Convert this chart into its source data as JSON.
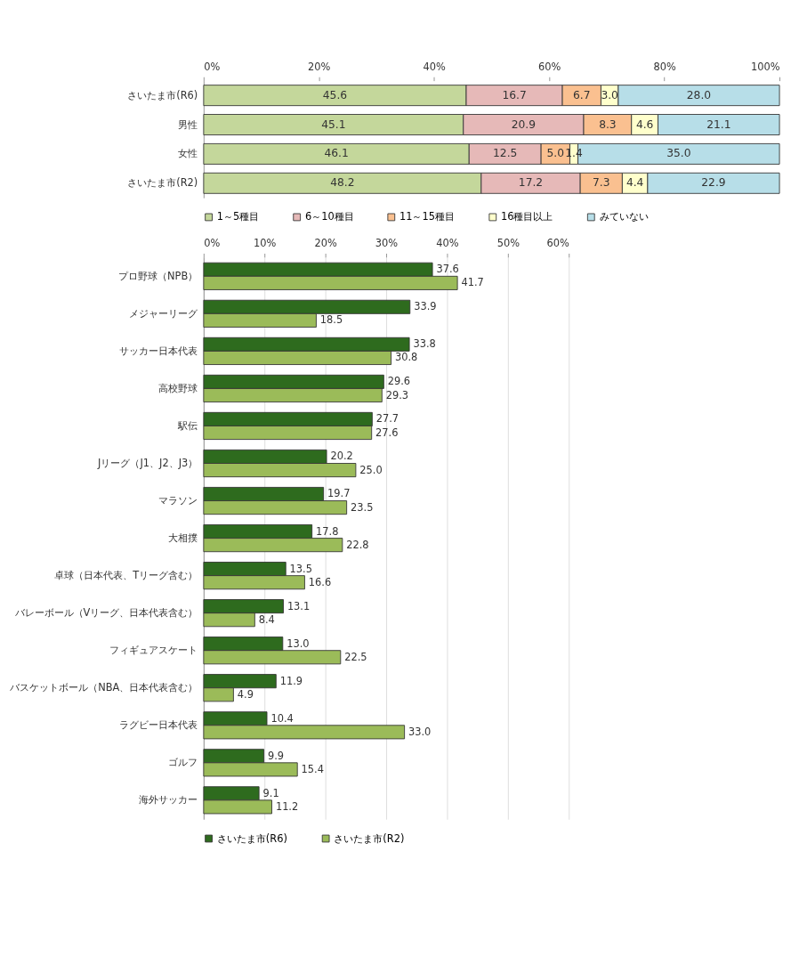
{
  "chart_data": [
    {
      "type": "bar",
      "orientation": "horizontal",
      "stacked": true,
      "grid": false,
      "legend": "bottom",
      "categories": [
        "さいたま市(R6)",
        "男性",
        "女性",
        "さいたま市(R2)"
      ],
      "xlim": [
        0,
        100
      ],
      "xticks": [
        {
          "value": 0,
          "label": "0%"
        },
        {
          "value": 20,
          "label": "20%"
        },
        {
          "value": 40,
          "label": "40%"
        },
        {
          "value": 60,
          "label": "60%"
        },
        {
          "value": 80,
          "label": "80%"
        },
        {
          "value": 100,
          "label": "100%"
        }
      ],
      "series": [
        {
          "name": "1～5種目",
          "color": "#c4d79b",
          "values": [
            45.6,
            45.1,
            46.1,
            48.2
          ],
          "value_labels": [
            "45.6",
            "45.1",
            "46.1",
            "48.2"
          ]
        },
        {
          "name": "6～10種目",
          "color": "#e6b9b8",
          "values": [
            16.7,
            20.9,
            12.5,
            17.2
          ],
          "value_labels": [
            "16.7",
            "20.9",
            "12.5",
            "17.2"
          ]
        },
        {
          "name": "11～15種目",
          "color": "#fac090",
          "values": [
            6.7,
            8.3,
            5.0,
            7.3
          ],
          "value_labels": [
            "6.7",
            "8.3",
            "5.0",
            "7.3"
          ]
        },
        {
          "name": "16種目以上",
          "color": "#ffffcc",
          "values": [
            3.0,
            4.6,
            1.4,
            4.4
          ],
          "value_labels": [
            "3.0",
            "4.6",
            "1.4",
            "4.4"
          ]
        },
        {
          "name": "みていない",
          "color": "#b7dee8",
          "values": [
            28.0,
            21.1,
            35.0,
            22.9
          ],
          "value_labels": [
            "28.0",
            "21.1",
            "35.0",
            "22.9"
          ]
        }
      ]
    },
    {
      "type": "bar",
      "orientation": "horizontal",
      "grid": "x",
      "legend": "bottom",
      "categories": [
        "プロ野球（NPB）",
        "メジャーリーグ",
        "サッカー日本代表",
        "高校野球",
        "駅伝",
        "Jリーグ（J1、J2、J3）",
        "マラソン",
        "大相撲",
        "卓球（日本代表、Tリーグ含む）",
        "バレーボール（Vリーグ、日本代表含む）",
        "フィギュアスケート",
        "バスケットボール（NBA、日本代表含む）",
        "ラグビー日本代表",
        "ゴルフ",
        "海外サッカー"
      ],
      "xlim": [
        0,
        60
      ],
      "xticks": [
        {
          "value": 0,
          "label": "0%"
        },
        {
          "value": 10,
          "label": "10%"
        },
        {
          "value": 20,
          "label": "20%"
        },
        {
          "value": 30,
          "label": "30%"
        },
        {
          "value": 40,
          "label": "40%"
        },
        {
          "value": 50,
          "label": "50%"
        },
        {
          "value": 60,
          "label": "60%"
        }
      ],
      "series": [
        {
          "name": "さいたま市(R6)",
          "color": "#2e6b1e",
          "values": [
            37.6,
            33.9,
            33.8,
            29.6,
            27.7,
            20.2,
            19.7,
            17.8,
            13.5,
            13.1,
            13.0,
            11.9,
            10.4,
            9.9,
            9.1
          ],
          "value_labels": [
            "37.6",
            "33.9",
            "33.8",
            "29.6",
            "27.7",
            "20.2",
            "19.7",
            "17.8",
            "13.5",
            "13.1",
            "13.0",
            "11.9",
            "10.4",
            "9.9",
            "9.1"
          ]
        },
        {
          "name": "さいたま市(R2)",
          "color": "#9bbb59",
          "values": [
            41.7,
            18.5,
            30.8,
            29.3,
            27.6,
            25.0,
            23.5,
            22.8,
            16.6,
            8.4,
            22.5,
            4.9,
            33.0,
            15.4,
            11.2
          ],
          "value_labels": [
            "41.7",
            "18.5",
            "30.8",
            "29.3",
            "27.6",
            "25.0",
            "23.5",
            "22.8",
            "16.6",
            "8.4",
            "22.5",
            "4.9",
            "33.0",
            "15.4",
            "11.2"
          ]
        }
      ]
    }
  ]
}
